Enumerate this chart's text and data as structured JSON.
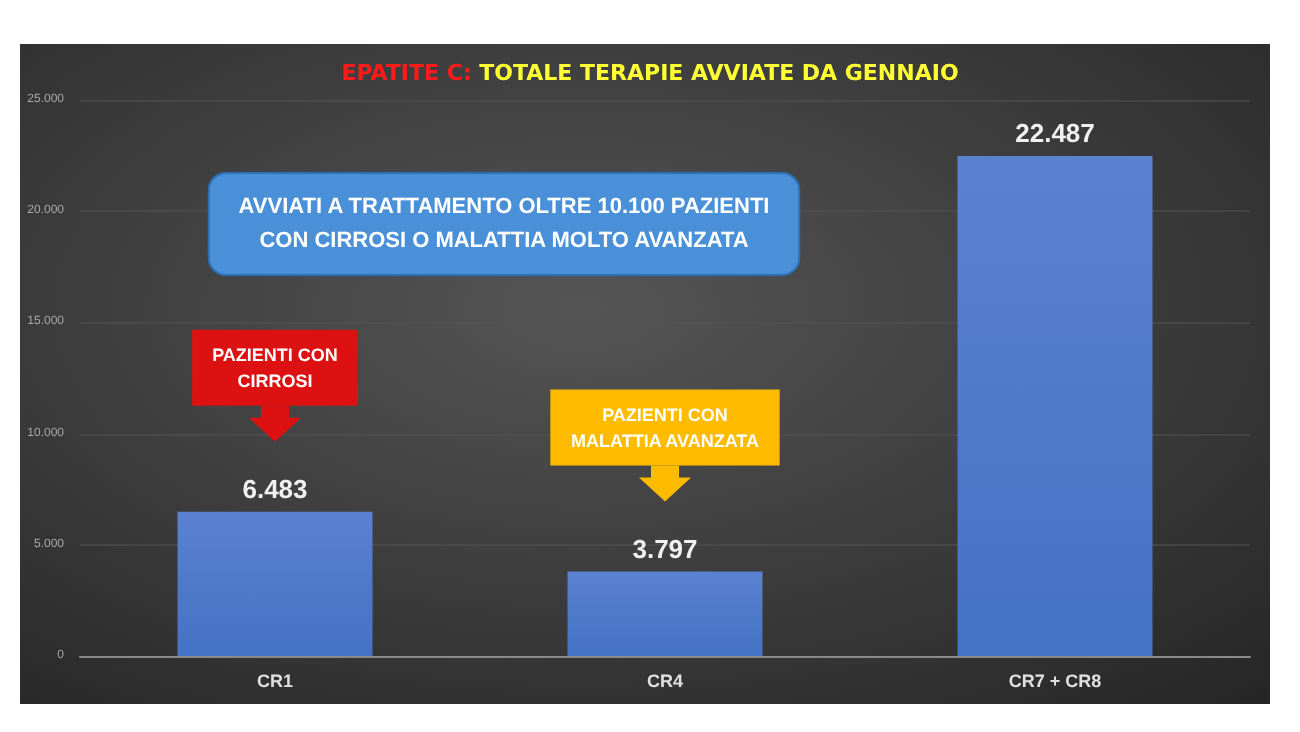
{
  "chart_data": {
    "type": "bar",
    "title": "EPATITE C: TOTALE TERAPIE AVVIATE DA GENNAIO",
    "categories": [
      "CR1",
      "CR4",
      "CR7 + CR8"
    ],
    "values": [
      6483,
      3797,
      22487
    ],
    "value_labels": [
      "6.483",
      "3.797",
      "22.487"
    ],
    "color": "#4472c4",
    "ylim": [
      0,
      25000
    ],
    "yticks": [
      {
        "value": 0,
        "label": "0"
      },
      {
        "value": 5000,
        "label": "5.000"
      },
      {
        "value": 10000,
        "label": "10.000"
      },
      {
        "value": 15000,
        "label": "15.000"
      },
      {
        "value": 20000,
        "label": "20.000"
      },
      {
        "value": 25000,
        "label": "25.000"
      }
    ],
    "grid": "y",
    "annotations": [
      "AVVIATI A TRATTAMENTO OLTRE 10.100 PAZIENTI\nCON CIRROSI O MALATTIA MOLTO AVANZATA",
      "PAZIENTI CON\nCIRROSI",
      "PAZIENTI CON\nMALATTIA AVANZATA"
    ]
  }
}
